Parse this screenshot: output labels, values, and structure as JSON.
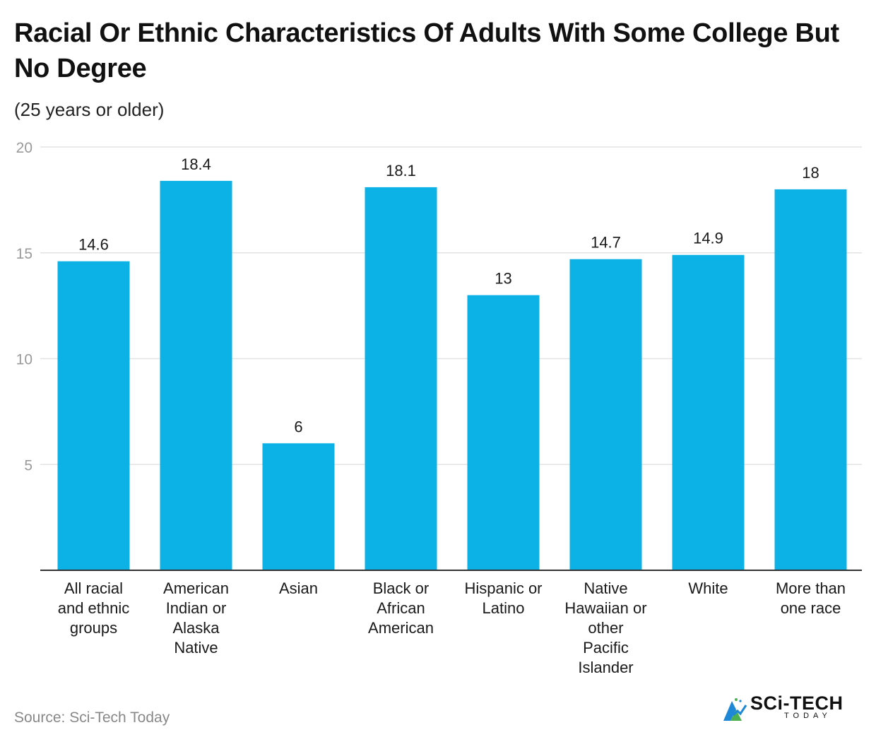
{
  "chart_data": {
    "type": "bar",
    "title": "Racial Or Ethnic Characteristics Of Adults With Some College But No Degree",
    "subtitle": "(25 years or older)",
    "categories": [
      "All racial and ethnic groups",
      "American Indian or Alaska Native",
      "Asian",
      "Black or African American",
      "Hispanic or Latino",
      "Native Hawaiian or other Pacific Islander",
      "White",
      "More than one race"
    ],
    "category_lines": [
      [
        "All racial",
        "and ethnic",
        "groups"
      ],
      [
        "American",
        "Indian or",
        "Alaska",
        "Native"
      ],
      [
        "Asian"
      ],
      [
        "Black or",
        "African",
        "American"
      ],
      [
        "Hispanic or",
        "Latino"
      ],
      [
        "Native",
        "Hawaiian or",
        "other",
        "Pacific",
        "Islander"
      ],
      [
        "White"
      ],
      [
        "More than",
        "one race"
      ]
    ],
    "values": [
      14.6,
      18.4,
      6,
      18.1,
      13,
      14.7,
      14.9,
      18
    ],
    "value_labels": [
      "14.6",
      "18.4",
      "6",
      "18.1",
      "13",
      "14.7",
      "14.9",
      "18"
    ],
    "ylim": [
      0,
      20
    ],
    "yticks": [
      5,
      10,
      15,
      20
    ],
    "ytick_labels": [
      "5",
      "10",
      "15",
      "20"
    ],
    "xlabel": "",
    "ylabel": "",
    "grid": true,
    "bar_color": "#0cb1e6"
  },
  "footer": {
    "source": "Source: Sci-Tech Today",
    "logo_name": "SCi-TECH",
    "logo_sub": "TODAY"
  },
  "colors": {
    "grid": "#e3e3e3",
    "axis": "#333333",
    "tick_text": "#9a9a9a",
    "logo_blue": "#1e88d6",
    "logo_green": "#4caf50"
  }
}
